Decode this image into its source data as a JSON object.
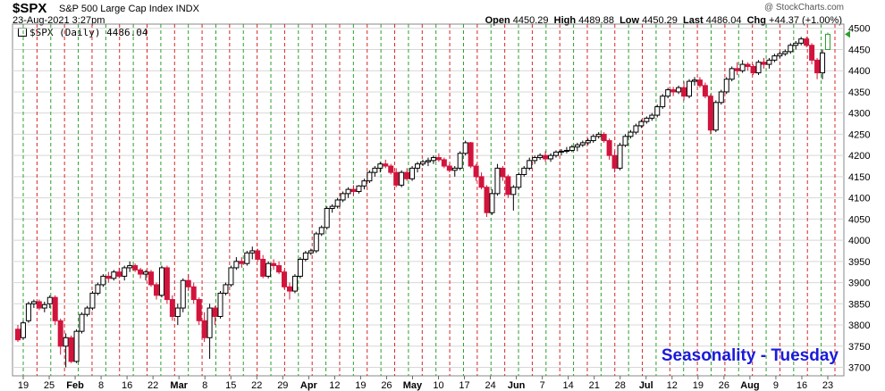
{
  "header": {
    "symbol": "$SPX",
    "description": "S&P 500 Large Cap Index INDX",
    "watermark": "@ StockCharts.com",
    "datetime": "23-Aug-2021 3:27pm",
    "open_label": "Open",
    "open": "4450.29",
    "high_label": "High",
    "high": "4489.88",
    "low_label": "Low",
    "low": "4450.29",
    "last_label": "Last",
    "last": "4486.04",
    "chg_label": "Chg",
    "chg": "+44.37 (+1.00%)",
    "legend": "$SPX (Daily) 4486.04"
  },
  "chart_data": {
    "type": "candlestick",
    "title": "Seasonality - Tuesday",
    "ylim": [
      3680,
      4510
    ],
    "y_ticks": [
      3700,
      3750,
      3800,
      3850,
      3900,
      3950,
      4000,
      4050,
      4100,
      4150,
      4200,
      4250,
      4300,
      4350,
      4400,
      4450,
      4500
    ],
    "x_tick_labels": [
      "19",
      "25",
      "Feb",
      "8",
      "16",
      "22",
      "Mar",
      "8",
      "15",
      "22",
      "29",
      "Apr",
      "12",
      "19",
      "26",
      "May",
      "10",
      "17",
      "24",
      "Jun",
      "7",
      "14",
      "21",
      "28",
      "Jul",
      "12",
      "19",
      "26",
      "Aug",
      "9",
      "16",
      "23"
    ],
    "last_price_marker": 4486.04,
    "grid": true,
    "colors": {
      "up": "#000000",
      "down": "#d2143c",
      "last_up": "#2e9e2e",
      "tuesday_line": "#2ca02c",
      "other_line": "#d62728",
      "title": "#1a1adc"
    },
    "vertical_lines": [
      "green",
      "red",
      "green",
      "red",
      "green",
      "red",
      "green",
      "red",
      "green",
      "red",
      "green",
      "red",
      "green",
      "red",
      "green",
      "red",
      "green",
      "red",
      "green",
      "red",
      "green",
      "red",
      "green",
      "red",
      "green",
      "red",
      "green",
      "red",
      "green",
      "red",
      "green",
      "red",
      "green",
      "red",
      "green",
      "red",
      "green",
      "red",
      "green",
      "red",
      "green",
      "red",
      "green",
      "red",
      "green",
      "red",
      "green",
      "red",
      "green",
      "red",
      "green",
      "red",
      "green",
      "red",
      "green",
      "red",
      "green",
      "red",
      "green",
      "red"
    ],
    "candles": [
      [
        3790,
        3800,
        3760,
        3765
      ],
      [
        3770,
        3810,
        3765,
        3805
      ],
      [
        3810,
        3855,
        3805,
        3850
      ],
      [
        3850,
        3860,
        3840,
        3855
      ],
      [
        3855,
        3860,
        3835,
        3840
      ],
      [
        3840,
        3855,
        3830,
        3848
      ],
      [
        3850,
        3870,
        3840,
        3865
      ],
      [
        3865,
        3870,
        3800,
        3810
      ],
      [
        3810,
        3815,
        3730,
        3750
      ],
      [
        3750,
        3780,
        3700,
        3770
      ],
      [
        3770,
        3775,
        3710,
        3714
      ],
      [
        3714,
        3790,
        3710,
        3785
      ],
      [
        3785,
        3830,
        3780,
        3825
      ],
      [
        3825,
        3845,
        3820,
        3840
      ],
      [
        3840,
        3880,
        3835,
        3875
      ],
      [
        3875,
        3900,
        3870,
        3895
      ],
      [
        3895,
        3920,
        3890,
        3915
      ],
      [
        3915,
        3925,
        3900,
        3910
      ],
      [
        3910,
        3930,
        3905,
        3925
      ],
      [
        3925,
        3935,
        3910,
        3915
      ],
      [
        3915,
        3940,
        3905,
        3935
      ],
      [
        3935,
        3950,
        3925,
        3940
      ],
      [
        3940,
        3945,
        3925,
        3930
      ],
      [
        3930,
        3935,
        3910,
        3920
      ],
      [
        3920,
        3930,
        3905,
        3925
      ],
      [
        3925,
        3930,
        3890,
        3895
      ],
      [
        3895,
        3900,
        3860,
        3870
      ],
      [
        3870,
        3940,
        3865,
        3935
      ],
      [
        3935,
        3940,
        3850,
        3860
      ],
      [
        3860,
        3870,
        3810,
        3820
      ],
      [
        3820,
        3850,
        3800,
        3840
      ],
      [
        3840,
        3910,
        3830,
        3905
      ],
      [
        3905,
        3920,
        3880,
        3890
      ],
      [
        3890,
        3900,
        3850,
        3860
      ],
      [
        3860,
        3865,
        3800,
        3810
      ],
      [
        3810,
        3830,
        3760,
        3770
      ],
      [
        3770,
        3850,
        3720,
        3840
      ],
      [
        3840,
        3845,
        3800,
        3820
      ],
      [
        3820,
        3880,
        3815,
        3875
      ],
      [
        3875,
        3900,
        3870,
        3895
      ],
      [
        3895,
        3940,
        3890,
        3935
      ],
      [
        3935,
        3960,
        3930,
        3950
      ],
      [
        3950,
        3960,
        3935,
        3945
      ],
      [
        3945,
        3975,
        3940,
        3970
      ],
      [
        3970,
        3985,
        3955,
        3975
      ],
      [
        3975,
        3980,
        3950,
        3955
      ],
      [
        3955,
        3965,
        3910,
        3915
      ],
      [
        3915,
        3950,
        3910,
        3945
      ],
      [
        3945,
        3955,
        3930,
        3940
      ],
      [
        3940,
        3950,
        3920,
        3925
      ],
      [
        3925,
        3930,
        3885,
        3890
      ],
      [
        3890,
        3900,
        3860,
        3880
      ],
      [
        3880,
        3920,
        3875,
        3915
      ],
      [
        3915,
        3960,
        3910,
        3955
      ],
      [
        3955,
        3975,
        3950,
        3970
      ],
      [
        3970,
        3980,
        3965,
        3975
      ],
      [
        3975,
        4020,
        3970,
        4015
      ],
      [
        4015,
        4035,
        4010,
        4030
      ],
      [
        4030,
        4080,
        4025,
        4075
      ],
      [
        4075,
        4085,
        4065,
        4080
      ],
      [
        4080,
        4100,
        4075,
        4095
      ],
      [
        4095,
        4115,
        4090,
        4110
      ],
      [
        4110,
        4125,
        4100,
        4120
      ],
      [
        4120,
        4130,
        4105,
        4115
      ],
      [
        4115,
        4130,
        4110,
        4128
      ],
      [
        4128,
        4145,
        4120,
        4140
      ],
      [
        4140,
        4165,
        4135,
        4160
      ],
      [
        4160,
        4175,
        4150,
        4170
      ],
      [
        4170,
        4185,
        4160,
        4180
      ],
      [
        4180,
        4190,
        4170,
        4175
      ],
      [
        4175,
        4180,
        4155,
        4160
      ],
      [
        4160,
        4170,
        4125,
        4130
      ],
      [
        4130,
        4165,
        4125,
        4160
      ],
      [
        4160,
        4170,
        4140,
        4145
      ],
      [
        4145,
        4175,
        4140,
        4170
      ],
      [
        4170,
        4185,
        4160,
        4180
      ],
      [
        4180,
        4190,
        4175,
        4185
      ],
      [
        4185,
        4195,
        4175,
        4188
      ],
      [
        4188,
        4200,
        4180,
        4195
      ],
      [
        4195,
        4205,
        4185,
        4190
      ],
      [
        4190,
        4195,
        4170,
        4175
      ],
      [
        4175,
        4180,
        4160,
        4165
      ],
      [
        4165,
        4175,
        4150,
        4170
      ],
      [
        4170,
        4210,
        4165,
        4205
      ],
      [
        4205,
        4235,
        4200,
        4230
      ],
      [
        4230,
        4232,
        4170,
        4175
      ],
      [
        4175,
        4180,
        4140,
        4150
      ],
      [
        4150,
        4160,
        4120,
        4125
      ],
      [
        4125,
        4130,
        4055,
        4065
      ],
      [
        4065,
        4120,
        4060,
        4110
      ],
      [
        4110,
        4180,
        4105,
        4170
      ],
      [
        4170,
        4175,
        4140,
        4150
      ],
      [
        4150,
        4155,
        4100,
        4108
      ],
      [
        4108,
        4130,
        4070,
        4125
      ],
      [
        4125,
        4160,
        4120,
        4155
      ],
      [
        4155,
        4175,
        4150,
        4170
      ],
      [
        4170,
        4195,
        4165,
        4188
      ],
      [
        4188,
        4200,
        4180,
        4195
      ],
      [
        4195,
        4205,
        4190,
        4200
      ],
      [
        4200,
        4210,
        4185,
        4192
      ],
      [
        4192,
        4205,
        4185,
        4200
      ],
      [
        4200,
        4212,
        4195,
        4208
      ],
      [
        4208,
        4215,
        4200,
        4210
      ],
      [
        4210,
        4220,
        4205,
        4212
      ],
      [
        4212,
        4225,
        4208,
        4220
      ],
      [
        4220,
        4230,
        4210,
        4225
      ],
      [
        4225,
        4235,
        4220,
        4230
      ],
      [
        4230,
        4240,
        4225,
        4235
      ],
      [
        4235,
        4250,
        4230,
        4245
      ],
      [
        4245,
        4255,
        4240,
        4250
      ],
      [
        4250,
        4255,
        4230,
        4235
      ],
      [
        4235,
        4240,
        4190,
        4200
      ],
      [
        4200,
        4210,
        4160,
        4170
      ],
      [
        4170,
        4230,
        4165,
        4224
      ],
      [
        4224,
        4250,
        4220,
        4245
      ],
      [
        4245,
        4260,
        4240,
        4255
      ],
      [
        4255,
        4275,
        4250,
        4270
      ],
      [
        4270,
        4285,
        4265,
        4280
      ],
      [
        4280,
        4292,
        4275,
        4288
      ],
      [
        4288,
        4300,
        4282,
        4295
      ],
      [
        4295,
        4320,
        4290,
        4315
      ],
      [
        4315,
        4345,
        4310,
        4340
      ],
      [
        4340,
        4360,
        4335,
        4355
      ],
      [
        4355,
        4362,
        4340,
        4350
      ],
      [
        4350,
        4365,
        4345,
        4360
      ],
      [
        4360,
        4375,
        4330,
        4340
      ],
      [
        4340,
        4380,
        4335,
        4375
      ],
      [
        4375,
        4385,
        4365,
        4378
      ],
      [
        4378,
        4385,
        4360,
        4365
      ],
      [
        4365,
        4372,
        4335,
        4340
      ],
      [
        4340,
        4345,
        4250,
        4260
      ],
      [
        4260,
        4330,
        4255,
        4325
      ],
      [
        4325,
        4355,
        4320,
        4350
      ],
      [
        4350,
        4385,
        4345,
        4380
      ],
      [
        4380,
        4410,
        4375,
        4405
      ],
      [
        4405,
        4420,
        4390,
        4400
      ],
      [
        4400,
        4425,
        4395,
        4415
      ],
      [
        4415,
        4420,
        4400,
        4410
      ],
      [
        4410,
        4415,
        4390,
        4395
      ],
      [
        4395,
        4425,
        4390,
        4420
      ],
      [
        4420,
        4430,
        4405,
        4415
      ],
      [
        4415,
        4430,
        4405,
        4425
      ],
      [
        4425,
        4440,
        4420,
        4435
      ],
      [
        4435,
        4445,
        4430,
        4440
      ],
      [
        4440,
        4450,
        4435,
        4445
      ],
      [
        4445,
        4465,
        4440,
        4460
      ],
      [
        4460,
        4470,
        4450,
        4465
      ],
      [
        4465,
        4480,
        4460,
        4475
      ],
      [
        4475,
        4480,
        4455,
        4460
      ],
      [
        4460,
        4465,
        4415,
        4425
      ],
      [
        4425,
        4430,
        4380,
        4395
      ],
      [
        4395,
        4450,
        4380,
        4442
      ],
      [
        4450,
        4490,
        4450,
        4486
      ]
    ]
  }
}
